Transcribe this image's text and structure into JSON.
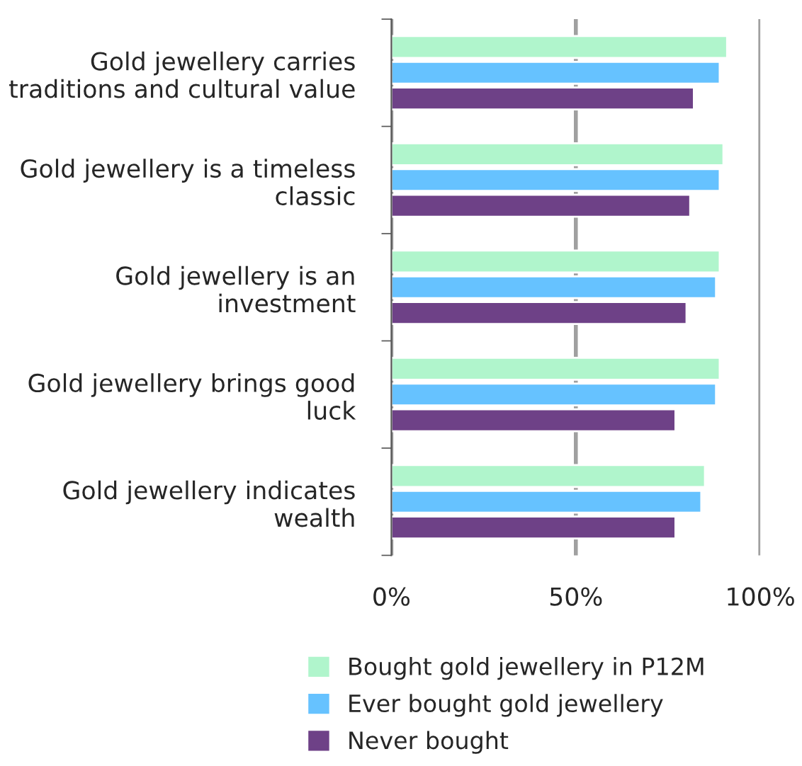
{
  "chart_data": {
    "type": "bar",
    "orientation": "horizontal",
    "categories": [
      "Gold jewellery carries\ntraditions and cultural value",
      "Gold jewellery is a timeless\nclassic",
      "Gold jewellery is an\ninvestment",
      "Gold jewellery brings good\nluck",
      "Gold jewellery indicates\nwealth"
    ],
    "series": [
      {
        "name": "Bought gold jewellery in P12M",
        "color": "#b0f5cc",
        "values": [
          91,
          90,
          89,
          89,
          85
        ]
      },
      {
        "name": "Ever bought gold jewellery",
        "color": "#66c2ff",
        "values": [
          89,
          89,
          88,
          88,
          84
        ]
      },
      {
        "name": "Never bought",
        "color": "#6e4187",
        "values": [
          82,
          81,
          80,
          77,
          77
        ]
      }
    ],
    "xlim": [
      0,
      100
    ],
    "xticks": [
      {
        "value": 0,
        "label": "0%"
      },
      {
        "value": 50,
        "label": "50%"
      },
      {
        "value": 100,
        "label": "100%"
      }
    ],
    "grid": "x",
    "legend": "bottom"
  }
}
